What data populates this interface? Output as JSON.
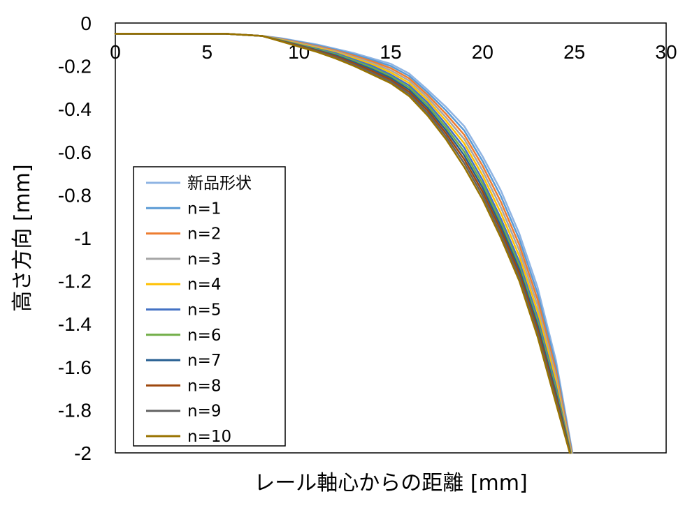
{
  "chart_data": {
    "type": "line",
    "title": "",
    "xlabel": "レール軸心からの距離 [mm]",
    "ylabel": "高さ方向 [mm]",
    "xlim": [
      0,
      30
    ],
    "ylim": [
      -2,
      0
    ],
    "xticks": [
      "0",
      "5",
      "10",
      "15",
      "20",
      "25",
      "30"
    ],
    "yticks": [
      "0",
      "-0.2",
      "-0.4",
      "-0.6",
      "-0.8",
      "-1",
      "-1.2",
      "-1.4",
      "-1.6",
      "-1.8",
      "-2"
    ],
    "x_axis_position": "top",
    "grid": false,
    "legend_position": "lower-left",
    "series": [
      {
        "name": "新品形状",
        "color": "#8fb4e3",
        "x": [
          0,
          2,
          4,
          6,
          8,
          9,
          10,
          11,
          12,
          13,
          14,
          15,
          16,
          17,
          18,
          19,
          20,
          21,
          22,
          23,
          24,
          24.9
        ],
        "y": [
          -0.05,
          -0.05,
          -0.05,
          -0.05,
          -0.06,
          -0.07,
          -0.085,
          -0.1,
          -0.12,
          -0.14,
          -0.165,
          -0.19,
          -0.235,
          -0.31,
          -0.39,
          -0.48,
          -0.62,
          -0.78,
          -0.98,
          -1.23,
          -1.57,
          -2.0
        ]
      },
      {
        "name": "n=1",
        "color": "#5b9bd5",
        "x": [
          0,
          2,
          4,
          6,
          8,
          9,
          10,
          11,
          12,
          13,
          14,
          15,
          16,
          17,
          18,
          19,
          20,
          21,
          22,
          23,
          24,
          24.88
        ],
        "y": [
          -0.05,
          -0.05,
          -0.05,
          -0.05,
          -0.06,
          -0.072,
          -0.088,
          -0.104,
          -0.124,
          -0.146,
          -0.172,
          -0.2,
          -0.246,
          -0.322,
          -0.406,
          -0.5,
          -0.642,
          -0.806,
          -1.006,
          -1.258,
          -1.594,
          -2.0
        ]
      },
      {
        "name": "n=2",
        "color": "#ed7d31",
        "x": [
          0,
          2,
          4,
          6,
          8,
          9,
          10,
          11,
          12,
          13,
          14,
          15,
          16,
          17,
          18,
          19,
          20,
          21,
          22,
          23,
          24,
          24.86
        ],
        "y": [
          -0.05,
          -0.05,
          -0.05,
          -0.05,
          -0.06,
          -0.074,
          -0.091,
          -0.108,
          -0.128,
          -0.152,
          -0.179,
          -0.21,
          -0.257,
          -0.334,
          -0.422,
          -0.52,
          -0.664,
          -0.832,
          -1.032,
          -1.286,
          -1.618,
          -2.0
        ]
      },
      {
        "name": "n=3",
        "color": "#a5a5a5",
        "x": [
          0,
          2,
          4,
          6,
          8,
          9,
          10,
          11,
          12,
          13,
          14,
          15,
          16,
          17,
          18,
          19,
          20,
          21,
          22,
          23,
          24,
          24.84
        ],
        "y": [
          -0.05,
          -0.05,
          -0.05,
          -0.05,
          -0.06,
          -0.076,
          -0.094,
          -0.112,
          -0.132,
          -0.158,
          -0.186,
          -0.22,
          -0.268,
          -0.346,
          -0.438,
          -0.54,
          -0.686,
          -0.858,
          -1.058,
          -1.314,
          -1.642,
          -2.0
        ]
      },
      {
        "name": "n=4",
        "color": "#ffc000",
        "x": [
          0,
          2,
          4,
          6,
          8,
          9,
          10,
          11,
          12,
          13,
          14,
          15,
          16,
          17,
          18,
          19,
          20,
          21,
          22,
          23,
          24,
          24.82
        ],
        "y": [
          -0.05,
          -0.05,
          -0.05,
          -0.05,
          -0.06,
          -0.078,
          -0.097,
          -0.116,
          -0.136,
          -0.164,
          -0.193,
          -0.23,
          -0.279,
          -0.358,
          -0.454,
          -0.56,
          -0.708,
          -0.884,
          -1.084,
          -1.342,
          -1.666,
          -2.0
        ]
      },
      {
        "name": "n=5",
        "color": "#4472c4",
        "x": [
          0,
          2,
          4,
          6,
          8,
          9,
          10,
          11,
          12,
          13,
          14,
          15,
          16,
          17,
          18,
          19,
          20,
          21,
          22,
          23,
          24,
          24.8
        ],
        "y": [
          -0.05,
          -0.05,
          -0.05,
          -0.05,
          -0.06,
          -0.08,
          -0.1,
          -0.12,
          -0.14,
          -0.17,
          -0.2,
          -0.24,
          -0.29,
          -0.37,
          -0.47,
          -0.58,
          -0.73,
          -0.91,
          -1.11,
          -1.37,
          -1.69,
          -2.0
        ]
      },
      {
        "name": "n=6",
        "color": "#70ad47",
        "x": [
          0,
          2,
          4,
          6,
          8,
          9,
          10,
          11,
          12,
          13,
          14,
          15,
          16,
          17,
          18,
          19,
          20,
          21,
          22,
          23,
          24,
          24.79
        ],
        "y": [
          -0.05,
          -0.05,
          -0.05,
          -0.05,
          -0.06,
          -0.081,
          -0.102,
          -0.123,
          -0.145,
          -0.176,
          -0.208,
          -0.248,
          -0.3,
          -0.382,
          -0.484,
          -0.598,
          -0.748,
          -0.928,
          -1.128,
          -1.388,
          -1.706,
          -2.0
        ]
      },
      {
        "name": "n=7",
        "color": "#255e91",
        "x": [
          0,
          2,
          4,
          6,
          8,
          9,
          10,
          11,
          12,
          13,
          14,
          15,
          16,
          17,
          18,
          19,
          20,
          21,
          22,
          23,
          24,
          24.78
        ],
        "y": [
          -0.05,
          -0.05,
          -0.05,
          -0.05,
          -0.06,
          -0.082,
          -0.104,
          -0.126,
          -0.15,
          -0.182,
          -0.216,
          -0.256,
          -0.31,
          -0.394,
          -0.498,
          -0.616,
          -0.766,
          -0.946,
          -1.146,
          -1.406,
          -1.722,
          -2.0
        ]
      },
      {
        "name": "n=8",
        "color": "#9e480e",
        "x": [
          0,
          2,
          4,
          6,
          8,
          9,
          10,
          11,
          12,
          13,
          14,
          15,
          16,
          17,
          18,
          19,
          20,
          21,
          22,
          23,
          24,
          24.77
        ],
        "y": [
          -0.05,
          -0.05,
          -0.05,
          -0.05,
          -0.06,
          -0.083,
          -0.106,
          -0.129,
          -0.155,
          -0.188,
          -0.224,
          -0.264,
          -0.32,
          -0.406,
          -0.512,
          -0.634,
          -0.784,
          -0.964,
          -1.164,
          -1.424,
          -1.738,
          -2.0
        ]
      },
      {
        "name": "n=9",
        "color": "#636363",
        "x": [
          0,
          2,
          4,
          6,
          8,
          9,
          10,
          11,
          12,
          13,
          14,
          15,
          16,
          17,
          18,
          19,
          20,
          21,
          22,
          23,
          24,
          24.76
        ],
        "y": [
          -0.05,
          -0.05,
          -0.05,
          -0.05,
          -0.06,
          -0.084,
          -0.108,
          -0.132,
          -0.16,
          -0.194,
          -0.232,
          -0.272,
          -0.33,
          -0.418,
          -0.526,
          -0.652,
          -0.802,
          -0.982,
          -1.182,
          -1.442,
          -1.754,
          -2.0
        ]
      },
      {
        "name": "n=10",
        "color": "#997300",
        "x": [
          0,
          2,
          4,
          6,
          8,
          9,
          10,
          11,
          12,
          13,
          14,
          15,
          16,
          17,
          18,
          19,
          20,
          21,
          22,
          23,
          24,
          24.75
        ],
        "y": [
          -0.05,
          -0.05,
          -0.05,
          -0.05,
          -0.06,
          -0.085,
          -0.11,
          -0.135,
          -0.165,
          -0.2,
          -0.24,
          -0.28,
          -0.34,
          -0.43,
          -0.54,
          -0.67,
          -0.82,
          -1.0,
          -1.2,
          -1.46,
          -1.77,
          -2.0
        ]
      }
    ]
  }
}
